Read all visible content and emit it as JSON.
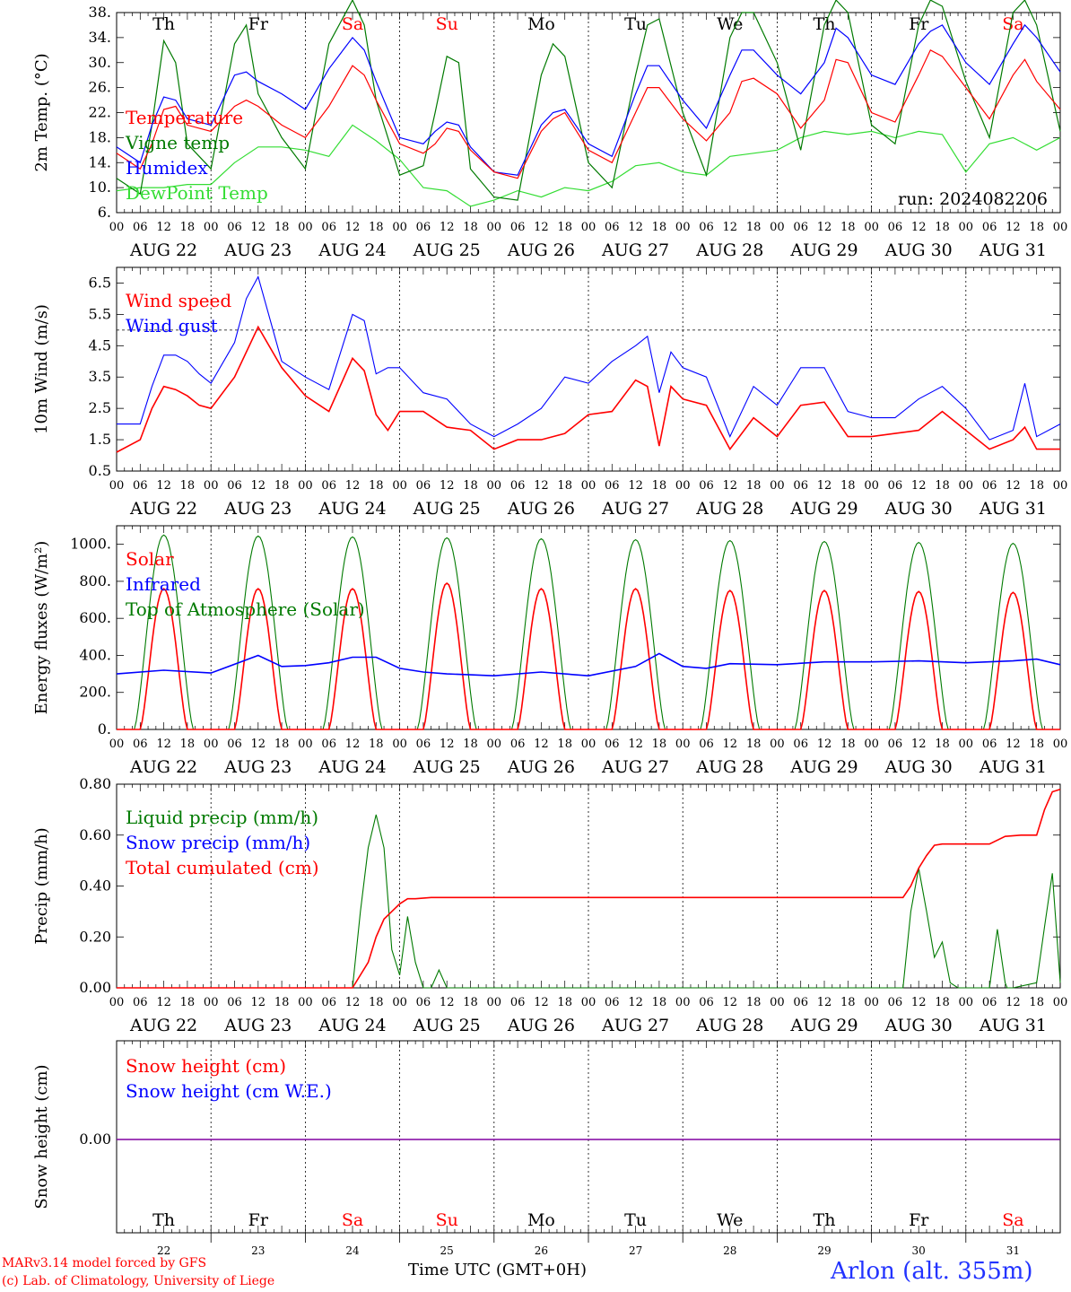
{
  "run": "run: 2024082206",
  "footer": {
    "model": "MARv3.14 model forced by GFS",
    "credit": "(c) Lab. of Climatology, University of Liege",
    "time_axis": "Time UTC (GMT+0H)",
    "location": "Arlon (alt. 355m)"
  },
  "colors": {
    "red": "#ff0000",
    "blue": "#0000ff",
    "green": "#007a00",
    "lightgreen": "#33dd33",
    "purple": "#8000a0",
    "grid": "#000000"
  },
  "days": [
    {
      "dow": "Th",
      "date": "AUG 22",
      "num": "22",
      "weekend": false
    },
    {
      "dow": "Fr",
      "date": "AUG 23",
      "num": "23",
      "weekend": false
    },
    {
      "dow": "Sa",
      "date": "AUG 24",
      "num": "24",
      "weekend": true
    },
    {
      "dow": "Su",
      "date": "AUG 25",
      "num": "25",
      "weekend": true
    },
    {
      "dow": "Mo",
      "date": "AUG 26",
      "num": "26",
      "weekend": false
    },
    {
      "dow": "Tu",
      "date": "AUG 27",
      "num": "27",
      "weekend": false
    },
    {
      "dow": "We",
      "date": "AUG 28",
      "num": "28",
      "weekend": false
    },
    {
      "dow": "Th",
      "date": "AUG 29",
      "num": "29",
      "weekend": false
    },
    {
      "dow": "Fr",
      "date": "AUG 30",
      "num": "30",
      "weekend": false
    },
    {
      "dow": "Sa",
      "date": "AUG 31",
      "num": "31",
      "weekend": true
    }
  ],
  "hour_ticks": [
    "00",
    "06",
    "12",
    "18"
  ],
  "last_hour_tick": "00",
  "chart_data": [
    {
      "type": "line",
      "ylabel": "2m Temp. (°C)",
      "ylim": [
        6,
        38
      ],
      "yticks": [
        "6.",
        "10.",
        "14.",
        "18.",
        "22.",
        "26.",
        "30.",
        "34.",
        "38."
      ],
      "x_unit": "hours since AUG 22 00 UTC",
      "series": [
        {
          "name": "Temperature",
          "color": "red",
          "x": [
            0,
            6,
            9,
            12,
            15,
            18,
            24,
            30,
            33,
            36,
            42,
            48,
            54,
            60,
            63,
            66,
            72,
            78,
            81,
            84,
            87,
            90,
            96,
            102,
            108,
            111,
            114,
            120,
            126,
            132,
            135,
            138,
            144,
            150,
            156,
            159,
            162,
            168,
            174,
            180,
            183,
            186,
            192,
            198,
            204,
            207,
            210,
            216,
            222,
            228,
            231,
            234,
            240
          ],
          "y": [
            15.5,
            13,
            17,
            22.5,
            23,
            20,
            19,
            23,
            24,
            23,
            20,
            18,
            23,
            29.5,
            28,
            24,
            17,
            15.5,
            17,
            19.5,
            19,
            16,
            12.5,
            11.5,
            19,
            21,
            22,
            16,
            14,
            22,
            26,
            26,
            21,
            17.5,
            22,
            27,
            27.5,
            25,
            19.5,
            24,
            30.5,
            30,
            22,
            20.5,
            28,
            32,
            31,
            26,
            21,
            28,
            30.5,
            27,
            22.5
          ]
        },
        {
          "name": "Vigne temp",
          "color": "green",
          "x": [
            0,
            6,
            9,
            12,
            15,
            18,
            24,
            30,
            33,
            36,
            42,
            48,
            54,
            60,
            63,
            66,
            72,
            78,
            81,
            84,
            87,
            90,
            96,
            102,
            108,
            111,
            114,
            120,
            126,
            132,
            135,
            138,
            144,
            150,
            156,
            159,
            162,
            168,
            174,
            180,
            183,
            186,
            192,
            198,
            204,
            207,
            210,
            216,
            222,
            228,
            231,
            234,
            240
          ],
          "y": [
            11.5,
            9,
            20,
            33.5,
            30,
            17,
            13,
            33,
            36,
            25,
            18,
            13,
            33,
            40,
            36,
            24,
            12,
            13.5,
            22,
            31,
            30,
            13,
            8.5,
            8,
            28,
            33,
            31,
            14,
            10,
            28,
            36,
            37,
            22,
            12,
            34,
            38,
            38,
            30,
            16,
            36,
            40,
            38,
            20,
            17,
            36,
            40,
            39,
            27,
            18,
            38,
            40,
            36,
            19
          ]
        },
        {
          "name": "Humidex",
          "color": "blue",
          "x": [
            0,
            6,
            9,
            12,
            15,
            18,
            24,
            30,
            33,
            36,
            42,
            48,
            54,
            60,
            63,
            66,
            72,
            78,
            81,
            84,
            87,
            90,
            96,
            102,
            108,
            111,
            114,
            120,
            126,
            132,
            135,
            138,
            144,
            150,
            156,
            159,
            162,
            168,
            174,
            180,
            183,
            186,
            192,
            198,
            204,
            207,
            210,
            216,
            222,
            228,
            231,
            234,
            240
          ],
          "y": [
            16.5,
            14,
            20,
            24.5,
            24,
            21,
            20,
            28,
            28.5,
            27,
            25,
            22.5,
            29,
            34,
            32,
            27,
            18,
            17,
            19,
            20.5,
            20,
            16.5,
            12.5,
            12,
            20,
            22,
            22.5,
            17,
            15,
            25,
            29.5,
            29.5,
            24,
            19.5,
            28,
            32,
            32,
            28,
            25,
            30,
            35.5,
            34,
            28,
            26.5,
            33,
            35,
            36,
            30,
            26.5,
            33,
            36,
            34,
            28.5
          ]
        },
        {
          "name": "DewPoint Temp",
          "color": "lightgreen",
          "x": [
            0,
            6,
            12,
            18,
            24,
            30,
            36,
            42,
            48,
            54,
            60,
            66,
            72,
            78,
            84,
            90,
            96,
            102,
            108,
            114,
            120,
            126,
            132,
            138,
            144,
            150,
            156,
            162,
            168,
            174,
            180,
            186,
            192,
            198,
            204,
            210,
            216,
            222,
            228,
            234,
            240
          ],
          "y": [
            9.5,
            10,
            10,
            10.5,
            10.5,
            14,
            16.5,
            16.5,
            16,
            15,
            20,
            17.5,
            14.5,
            10,
            9.5,
            7,
            8,
            9.5,
            8.5,
            10,
            9.5,
            11,
            13.5,
            14,
            12.5,
            12,
            15,
            15.5,
            16,
            18,
            19,
            18.5,
            19,
            18,
            19,
            18.5,
            12.5,
            17,
            18,
            16,
            18
          ]
        }
      ]
    },
    {
      "type": "line",
      "ylabel": "10m Wind (m/s)",
      "ylim": [
        0.5,
        7
      ],
      "yticks": [
        "0.5",
        "1.5",
        "2.5",
        "3.5",
        "4.5",
        "5.5",
        "6.5"
      ],
      "reference_line": 5,
      "series": [
        {
          "name": "Wind speed",
          "color": "red",
          "x": [
            0,
            6,
            9,
            12,
            15,
            18,
            21,
            24,
            30,
            36,
            42,
            48,
            54,
            60,
            63,
            66,
            69,
            72,
            78,
            84,
            90,
            96,
            102,
            108,
            114,
            120,
            126,
            132,
            135,
            138,
            141,
            144,
            150,
            156,
            162,
            168,
            174,
            180,
            186,
            192,
            198,
            204,
            210,
            216,
            222,
            228,
            231,
            234,
            240
          ],
          "y": [
            1.1,
            1.5,
            2.5,
            3.2,
            3.1,
            2.9,
            2.6,
            2.5,
            3.5,
            5.1,
            3.8,
            2.9,
            2.4,
            4.1,
            3.7,
            2.3,
            1.8,
            2.4,
            2.4,
            1.9,
            1.8,
            1.2,
            1.5,
            1.5,
            1.7,
            2.3,
            2.4,
            3.4,
            3.2,
            1.3,
            3.2,
            2.8,
            2.6,
            1.2,
            2.2,
            1.6,
            2.6,
            2.7,
            1.6,
            1.6,
            1.7,
            1.8,
            2.4,
            1.8,
            1.2,
            1.5,
            1.9,
            1.2,
            1.2
          ]
        },
        {
          "name": "Wind gust",
          "color": "blue",
          "x": [
            0,
            6,
            9,
            12,
            15,
            18,
            21,
            24,
            30,
            33,
            36,
            42,
            48,
            54,
            60,
            63,
            66,
            69,
            72,
            78,
            84,
            90,
            96,
            102,
            108,
            114,
            120,
            126,
            132,
            135,
            138,
            141,
            144,
            150,
            156,
            162,
            168,
            174,
            180,
            186,
            192,
            198,
            204,
            210,
            216,
            222,
            228,
            231,
            234,
            240
          ],
          "y": [
            2.0,
            2.0,
            3.2,
            4.2,
            4.2,
            4.0,
            3.6,
            3.3,
            4.6,
            6.0,
            6.7,
            4.0,
            3.5,
            3.1,
            5.5,
            5.3,
            3.6,
            3.8,
            3.8,
            3.0,
            2.8,
            2.0,
            1.6,
            2.0,
            2.5,
            3.5,
            3.3,
            4.0,
            4.5,
            4.8,
            3.0,
            4.3,
            3.8,
            3.5,
            1.6,
            3.2,
            2.6,
            3.8,
            3.8,
            2.4,
            2.2,
            2.2,
            2.8,
            3.2,
            2.5,
            1.5,
            1.8,
            3.3,
            1.6,
            2.0
          ]
        }
      ]
    },
    {
      "type": "line",
      "ylabel": "Energy fluxes (W/m²)",
      "ylim": [
        0,
        1100
      ],
      "yticks": [
        "0.",
        "200.",
        "400.",
        "600.",
        "800.",
        "1000."
      ],
      "series": [
        {
          "name": "Solar",
          "color": "red",
          "daily_peak": [
            760,
            760,
            760,
            790,
            760,
            760,
            750,
            750,
            745,
            740
          ]
        },
        {
          "name": "Infrared",
          "color": "blue",
          "x": [
            0,
            12,
            24,
            36,
            42,
            48,
            54,
            60,
            66,
            72,
            78,
            84,
            90,
            96,
            108,
            120,
            132,
            138,
            144,
            150,
            156,
            168,
            180,
            192,
            204,
            216,
            228,
            234,
            240
          ],
          "y": [
            300,
            320,
            305,
            400,
            340,
            345,
            360,
            390,
            390,
            330,
            310,
            300,
            295,
            290,
            310,
            290,
            340,
            410,
            340,
            330,
            355,
            350,
            365,
            365,
            370,
            360,
            370,
            380,
            350
          ]
        },
        {
          "name": "Top of Atmosphere (Solar)",
          "color": "green",
          "daily_peak": [
            1050,
            1045,
            1040,
            1035,
            1030,
            1025,
            1020,
            1015,
            1010,
            1005
          ]
        }
      ]
    },
    {
      "type": "line",
      "ylabel": "Precip (mm/h)",
      "ylim": [
        0,
        0.8
      ],
      "yticks": [
        "0.00",
        "0.20",
        "0.40",
        "0.60",
        "0.80"
      ],
      "series": [
        {
          "name": "Liquid precip (mm/h)",
          "color": "green",
          "x": [
            0,
            60,
            62,
            64,
            66,
            68,
            70,
            72,
            74,
            76,
            78,
            80,
            82,
            84,
            86,
            200,
            202,
            204,
            206,
            208,
            210,
            212,
            214,
            216,
            222,
            224,
            226,
            228,
            234,
            236,
            238,
            240,
            226.5
          ],
          "y": [
            0,
            0,
            0.3,
            0.55,
            0.68,
            0.55,
            0.15,
            0.05,
            0.28,
            0.1,
            0,
            0,
            0.07,
            0,
            0,
            0,
            0.3,
            0.47,
            0.3,
            0.12,
            0.18,
            0.02,
            0,
            0,
            0,
            0.23,
            0.02,
            0,
            0.02,
            0.24,
            0.45,
            0.02,
            0
          ]
        },
        {
          "name": "Snow precip (mm/h)",
          "color": "blue",
          "x": [
            0,
            240
          ],
          "y": [
            0,
            0
          ]
        },
        {
          "name": "Total cumulated (cm)",
          "color": "red",
          "x": [
            0,
            60,
            64,
            66,
            68,
            70,
            72,
            74,
            76,
            80,
            200,
            202,
            204,
            206,
            208,
            210,
            216,
            218,
            222,
            226,
            230,
            234,
            236,
            238,
            240
          ],
          "y": [
            0,
            0,
            0.1,
            0.2,
            0.27,
            0.3,
            0.33,
            0.35,
            0.35,
            0.355,
            0.355,
            0.4,
            0.47,
            0.52,
            0.56,
            0.565,
            0.565,
            0.565,
            0.565,
            0.595,
            0.6,
            0.6,
            0.7,
            0.77,
            0.78
          ]
        }
      ]
    },
    {
      "type": "line",
      "ylabel": "Snow height (cm)",
      "yticks": [
        "0.00"
      ],
      "series": [
        {
          "name": "Snow height (cm)",
          "color": "red",
          "x": [
            0,
            240
          ],
          "y": [
            0,
            0
          ]
        },
        {
          "name": "Snow height (cm W.E.)",
          "color": "blue",
          "x": [
            0,
            240
          ],
          "y": [
            0,
            0
          ]
        }
      ]
    }
  ]
}
